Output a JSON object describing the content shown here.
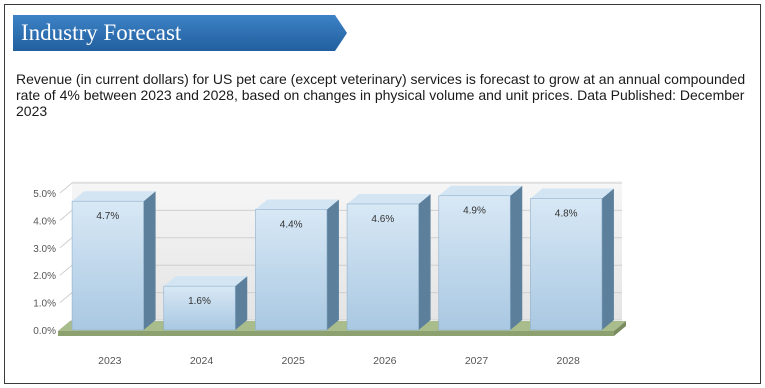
{
  "section": {
    "title": "Industry Forecast",
    "description": "Revenue (in current dollars) for US pet care (except veterinary) services is forecast to grow at an annual compounded rate of 4% between 2023 and 2028, based on changes in physical volume and unit prices. Data Published: December 2023"
  },
  "colors": {
    "banner": "#2e6eb2",
    "bar_front": "#a9c8e2",
    "bar_side": "#5c7f9c",
    "bar_top": "#d3e5f3",
    "floor": "#a9bc8c"
  },
  "chart_data": {
    "type": "bar",
    "title": "",
    "xlabel": "",
    "ylabel": "",
    "categories": [
      "2023",
      "2024",
      "2025",
      "2026",
      "2027",
      "2028"
    ],
    "values": [
      4.7,
      1.6,
      4.4,
      4.6,
      4.9,
      4.8
    ],
    "value_labels": [
      "4.7%",
      "1.6%",
      "4.4%",
      "4.6%",
      "4.9%",
      "4.8%"
    ],
    "ylim": [
      0,
      5
    ],
    "yticks": [
      "0.0%",
      "1.0%",
      "2.0%",
      "3.0%",
      "4.0%",
      "5.0%"
    ],
    "grid": true,
    "legend": "none",
    "style": "3d"
  }
}
